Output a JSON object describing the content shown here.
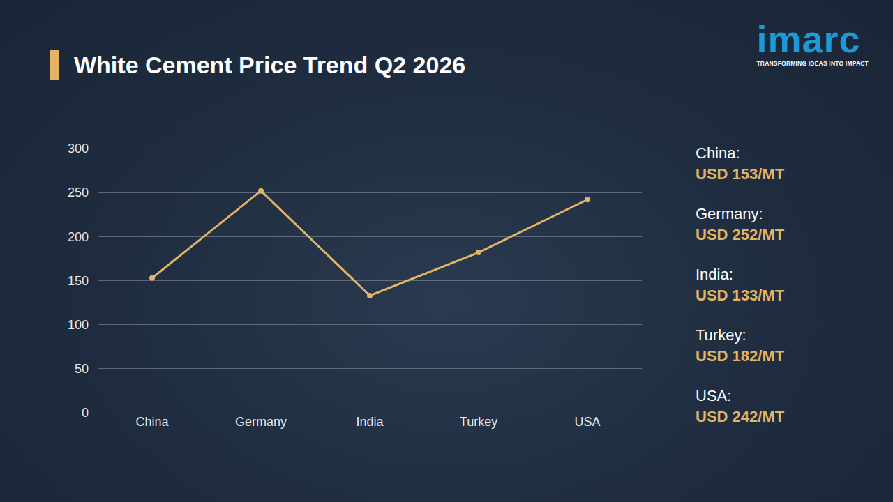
{
  "chart_data": {
    "type": "line",
    "title": "White Cement Price Trend Q2 2026",
    "categories": [
      "China",
      "Germany",
      "India",
      "Turkey",
      "USA"
    ],
    "values": [
      153,
      252,
      133,
      182,
      242
    ],
    "color": "#e2b464",
    "marker": "circle",
    "line_style": "solid",
    "ylim": [
      0,
      300
    ],
    "yticks": [
      0,
      50,
      100,
      150,
      200,
      250,
      300
    ],
    "grid": true,
    "annotations": [
      {
        "title": "China:",
        "text": "USD 153/MT"
      },
      {
        "title": "Germany:",
        "text": "USD 252/MT"
      },
      {
        "title": "India:",
        "text": "USD 133/MT"
      },
      {
        "title": "Turkey:",
        "text": "USD 182/MT"
      },
      {
        "title": "USA:",
        "text": "USD 242/MT"
      }
    ]
  },
  "logo": {
    "name": "imarc",
    "tagline": "TRANSFORMING IDEAS INTO IMPACT"
  }
}
